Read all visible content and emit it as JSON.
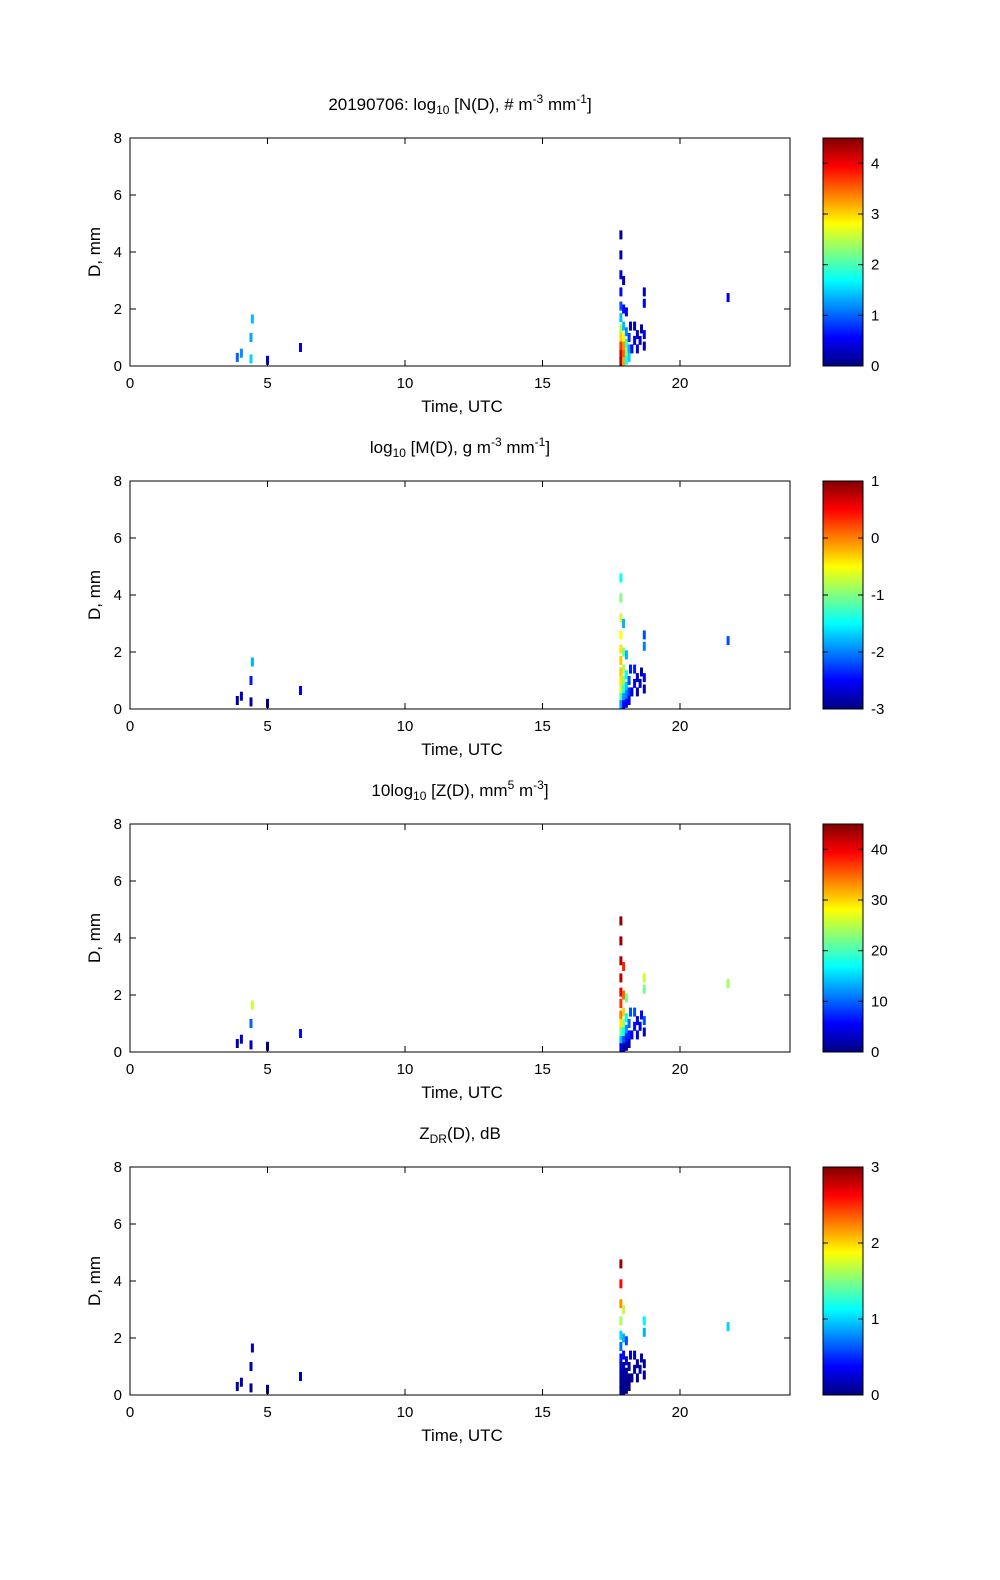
{
  "chart_data": [
    {
      "type": "heatmap",
      "title_parts": [
        "20190706: log",
        "10",
        " [N(D), # m",
        "-3",
        " mm",
        "-1",
        "]"
      ],
      "title_kinds": [
        "n",
        "sub",
        "n",
        "sup",
        "n",
        "sup",
        "n"
      ],
      "xlabel": "Time, UTC",
      "ylabel": "D, mm",
      "xlim": [
        0,
        24
      ],
      "ylim": [
        0,
        8
      ],
      "xticks": [
        0,
        5,
        10,
        15,
        20
      ],
      "yticks": [
        0,
        2,
        4,
        6,
        8
      ],
      "colormap": "jet",
      "colorbar": {
        "range": [
          0,
          4.5
        ],
        "ticks": [
          0,
          1,
          2,
          3,
          4
        ]
      },
      "cells": [
        [
          3.9,
          0.3,
          1.0
        ],
        [
          4.05,
          0.45,
          1.2
        ],
        [
          4.4,
          0.25,
          1.5
        ],
        [
          4.4,
          1.0,
          1.3
        ],
        [
          4.45,
          1.65,
          1.4
        ],
        [
          5.0,
          0.2,
          0.5
        ],
        [
          6.2,
          0.65,
          0.5
        ],
        [
          17.85,
          4.6,
          0.1
        ],
        [
          17.85,
          3.9,
          0.2
        ],
        [
          17.85,
          3.2,
          0.4
        ],
        [
          17.85,
          2.6,
          0.6
        ],
        [
          17.85,
          2.1,
          0.9
        ],
        [
          17.85,
          1.7,
          1.4
        ],
        [
          17.85,
          1.3,
          2.4
        ],
        [
          17.85,
          1.0,
          3.0
        ],
        [
          17.85,
          0.7,
          3.7
        ],
        [
          17.85,
          0.4,
          4.1
        ],
        [
          17.85,
          0.15,
          4.3
        ],
        [
          17.95,
          3.0,
          0.2
        ],
        [
          17.95,
          2.0,
          0.6
        ],
        [
          17.95,
          1.4,
          1.4
        ],
        [
          17.95,
          1.0,
          2.8
        ],
        [
          17.95,
          0.7,
          3.3
        ],
        [
          17.95,
          0.4,
          3.5
        ],
        [
          17.95,
          0.15,
          3.2
        ],
        [
          18.05,
          1.9,
          0.4
        ],
        [
          18.05,
          1.2,
          1.2
        ],
        [
          18.05,
          0.8,
          2.0
        ],
        [
          18.05,
          0.5,
          2.3
        ],
        [
          18.05,
          0.2,
          1.8
        ],
        [
          18.15,
          1.0,
          0.8
        ],
        [
          18.15,
          0.6,
          1.3
        ],
        [
          18.15,
          0.3,
          1.5
        ],
        [
          18.2,
          1.4,
          0.3
        ],
        [
          18.25,
          0.6,
          0.6
        ],
        [
          18.35,
          1.4,
          0.3
        ],
        [
          18.35,
          0.9,
          0.5
        ],
        [
          18.45,
          1.1,
          0.3
        ],
        [
          18.45,
          0.6,
          0.4
        ],
        [
          18.55,
          0.9,
          0.3
        ],
        [
          18.6,
          1.3,
          0.2
        ],
        [
          18.7,
          2.6,
          0.3
        ],
        [
          18.7,
          2.2,
          0.5
        ],
        [
          18.7,
          1.1,
          0.5
        ],
        [
          18.7,
          0.7,
          0.2
        ],
        [
          21.75,
          2.4,
          0.4
        ]
      ]
    },
    {
      "type": "heatmap",
      "title_parts": [
        "log",
        "10",
        " [M(D), g m",
        "-3",
        " mm",
        "-1",
        "]"
      ],
      "title_kinds": [
        "n",
        "sub",
        "n",
        "sup",
        "n",
        "sup",
        "n"
      ],
      "xlabel": "Time, UTC",
      "ylabel": "D, mm",
      "xlim": [
        0,
        24
      ],
      "ylim": [
        0,
        8
      ],
      "xticks": [
        0,
        5,
        10,
        15,
        20
      ],
      "yticks": [
        0,
        2,
        4,
        6,
        8
      ],
      "colormap": "jet",
      "colorbar": {
        "range": [
          -3,
          1
        ],
        "ticks": [
          -3,
          -2,
          -1,
          0,
          1
        ]
      },
      "cells": [
        [
          3.9,
          0.3,
          -2.9
        ],
        [
          4.05,
          0.45,
          -2.8
        ],
        [
          4.4,
          0.25,
          -2.8
        ],
        [
          4.4,
          1.0,
          -2.4
        ],
        [
          4.45,
          1.65,
          -1.8
        ],
        [
          5.0,
          0.2,
          -2.9
        ],
        [
          6.2,
          0.65,
          -2.6
        ],
        [
          17.85,
          4.6,
          -1.5
        ],
        [
          17.85,
          3.9,
          -1.0
        ],
        [
          17.85,
          3.2,
          -0.7
        ],
        [
          17.85,
          2.6,
          -0.5
        ],
        [
          17.85,
          2.1,
          -0.4
        ],
        [
          17.85,
          1.7,
          -0.3
        ],
        [
          17.85,
          1.3,
          -0.3
        ],
        [
          17.85,
          1.0,
          -0.4
        ],
        [
          17.85,
          0.7,
          -0.7
        ],
        [
          17.85,
          0.4,
          -1.2
        ],
        [
          17.85,
          0.15,
          -1.9
        ],
        [
          17.95,
          3.0,
          -1.8
        ],
        [
          17.95,
          2.0,
          -1.0
        ],
        [
          17.95,
          1.4,
          -0.8
        ],
        [
          17.95,
          1.0,
          -0.9
        ],
        [
          17.95,
          0.7,
          -1.3
        ],
        [
          17.95,
          0.4,
          -1.9
        ],
        [
          17.95,
          0.15,
          -2.5
        ],
        [
          18.05,
          1.9,
          -1.8
        ],
        [
          18.05,
          1.2,
          -1.5
        ],
        [
          18.05,
          0.8,
          -1.7
        ],
        [
          18.05,
          0.5,
          -2.0
        ],
        [
          18.05,
          0.2,
          -2.5
        ],
        [
          18.15,
          1.0,
          -2.2
        ],
        [
          18.15,
          0.6,
          -2.3
        ],
        [
          18.15,
          0.3,
          -2.6
        ],
        [
          18.2,
          1.4,
          -2.4
        ],
        [
          18.25,
          0.6,
          -2.6
        ],
        [
          18.35,
          1.4,
          -2.4
        ],
        [
          18.35,
          0.9,
          -2.6
        ],
        [
          18.45,
          1.1,
          -2.7
        ],
        [
          18.45,
          0.6,
          -2.8
        ],
        [
          18.55,
          0.9,
          -2.8
        ],
        [
          18.6,
          1.3,
          -2.8
        ],
        [
          18.7,
          2.6,
          -2.2
        ],
        [
          18.7,
          2.2,
          -2.0
        ],
        [
          18.7,
          1.1,
          -2.5
        ],
        [
          18.7,
          0.7,
          -2.8
        ],
        [
          21.75,
          2.4,
          -2.2
        ]
      ]
    },
    {
      "type": "heatmap",
      "title_parts": [
        "10log",
        "10",
        " [Z(D),  mm",
        "5",
        " m",
        "-3",
        "]"
      ],
      "title_kinds": [
        "n",
        "sub",
        "n",
        "sup",
        "n",
        "sup",
        "n"
      ],
      "xlabel": "Time, UTC",
      "ylabel": "D, mm",
      "xlim": [
        0,
        24
      ],
      "ylim": [
        0,
        8
      ],
      "xticks": [
        0,
        5,
        10,
        15,
        20
      ],
      "yticks": [
        0,
        2,
        4,
        6,
        8
      ],
      "colormap": "jet",
      "colorbar": {
        "range": [
          0,
          45
        ],
        "ticks": [
          0,
          10,
          20,
          30,
          40
        ]
      },
      "cells": [
        [
          3.9,
          0.3,
          2
        ],
        [
          4.05,
          0.45,
          3
        ],
        [
          4.4,
          0.25,
          3
        ],
        [
          4.4,
          1.0,
          10
        ],
        [
          4.45,
          1.65,
          26
        ],
        [
          5.0,
          0.2,
          1
        ],
        [
          6.2,
          0.65,
          6
        ],
        [
          17.85,
          4.6,
          44
        ],
        [
          17.85,
          3.9,
          44
        ],
        [
          17.85,
          3.2,
          43
        ],
        [
          17.85,
          2.6,
          42
        ],
        [
          17.85,
          2.1,
          40
        ],
        [
          17.85,
          1.7,
          37
        ],
        [
          17.85,
          1.3,
          34
        ],
        [
          17.85,
          1.0,
          29
        ],
        [
          17.85,
          0.7,
          22
        ],
        [
          17.85,
          0.4,
          14
        ],
        [
          17.85,
          0.15,
          5
        ],
        [
          17.95,
          3.0,
          38
        ],
        [
          17.95,
          2.0,
          35
        ],
        [
          17.95,
          1.4,
          30
        ],
        [
          17.95,
          1.0,
          24
        ],
        [
          17.95,
          0.7,
          17
        ],
        [
          17.95,
          0.4,
          9
        ],
        [
          17.95,
          0.15,
          2
        ],
        [
          18.05,
          1.9,
          22
        ],
        [
          18.05,
          1.2,
          17
        ],
        [
          18.05,
          0.8,
          12
        ],
        [
          18.05,
          0.5,
          7
        ],
        [
          18.05,
          0.2,
          2
        ],
        [
          18.15,
          1.0,
          10
        ],
        [
          18.15,
          0.6,
          7
        ],
        [
          18.15,
          0.3,
          3
        ],
        [
          18.2,
          1.4,
          9
        ],
        [
          18.25,
          0.6,
          5
        ],
        [
          18.35,
          1.4,
          9
        ],
        [
          18.35,
          0.9,
          6
        ],
        [
          18.45,
          1.1,
          5
        ],
        [
          18.45,
          0.6,
          4
        ],
        [
          18.55,
          0.9,
          4
        ],
        [
          18.6,
          1.3,
          6
        ],
        [
          18.7,
          2.6,
          26
        ],
        [
          18.7,
          2.2,
          22
        ],
        [
          18.7,
          1.1,
          9
        ],
        [
          18.7,
          0.7,
          4
        ],
        [
          21.75,
          2.4,
          24
        ]
      ]
    },
    {
      "type": "heatmap",
      "title_parts": [
        "Z",
        "DR",
        "(D), dB"
      ],
      "title_kinds": [
        "n",
        "sub",
        "n"
      ],
      "xlabel": "Time, UTC",
      "ylabel": "D, mm",
      "xlim": [
        0,
        24
      ],
      "ylim": [
        0,
        8
      ],
      "xticks": [
        0,
        5,
        10,
        15,
        20
      ],
      "yticks": [
        0,
        2,
        4,
        6,
        8
      ],
      "colormap": "jet",
      "colorbar": {
        "range": [
          0,
          3
        ],
        "ticks": [
          0,
          1,
          2,
          3
        ]
      },
      "cells": [
        [
          3.9,
          0.3,
          0.1
        ],
        [
          4.05,
          0.45,
          0.1
        ],
        [
          4.4,
          0.25,
          0.1
        ],
        [
          4.4,
          1.0,
          0.15
        ],
        [
          4.45,
          1.65,
          0.2
        ],
        [
          5.0,
          0.2,
          0.05
        ],
        [
          6.2,
          0.65,
          0.1
        ],
        [
          17.85,
          4.6,
          2.9
        ],
        [
          17.85,
          3.9,
          2.6
        ],
        [
          17.85,
          3.2,
          2.2
        ],
        [
          17.85,
          2.6,
          1.6
        ],
        [
          17.85,
          2.1,
          1.0
        ],
        [
          17.85,
          1.7,
          0.7
        ],
        [
          17.85,
          1.3,
          0.4
        ],
        [
          17.85,
          1.0,
          0.2
        ],
        [
          17.85,
          0.7,
          0.1
        ],
        [
          17.85,
          0.4,
          0.05
        ],
        [
          17.85,
          0.15,
          0.02
        ],
        [
          17.95,
          3.0,
          1.7
        ],
        [
          17.95,
          2.0,
          0.9
        ],
        [
          17.95,
          1.4,
          0.4
        ],
        [
          17.95,
          1.0,
          0.2
        ],
        [
          17.95,
          0.7,
          0.1
        ],
        [
          17.95,
          0.4,
          0.05
        ],
        [
          17.95,
          0.15,
          0.02
        ],
        [
          18.05,
          1.9,
          0.6
        ],
        [
          18.05,
          1.2,
          0.2
        ],
        [
          18.05,
          0.8,
          0.1
        ],
        [
          18.05,
          0.5,
          0.05
        ],
        [
          18.05,
          0.2,
          0.02
        ],
        [
          18.15,
          1.0,
          0.1
        ],
        [
          18.15,
          0.6,
          0.05
        ],
        [
          18.15,
          0.3,
          0.02
        ],
        [
          18.2,
          1.4,
          0.2
        ],
        [
          18.25,
          0.6,
          0.05
        ],
        [
          18.35,
          1.4,
          0.2
        ],
        [
          18.35,
          0.9,
          0.1
        ],
        [
          18.45,
          1.1,
          0.1
        ],
        [
          18.45,
          0.6,
          0.05
        ],
        [
          18.55,
          0.9,
          0.1
        ],
        [
          18.6,
          1.3,
          0.15
        ],
        [
          18.7,
          2.6,
          1.1
        ],
        [
          18.7,
          2.2,
          0.9
        ],
        [
          18.7,
          1.1,
          0.1
        ],
        [
          18.7,
          0.7,
          0.05
        ],
        [
          21.75,
          2.4,
          1.0
        ]
      ]
    }
  ]
}
